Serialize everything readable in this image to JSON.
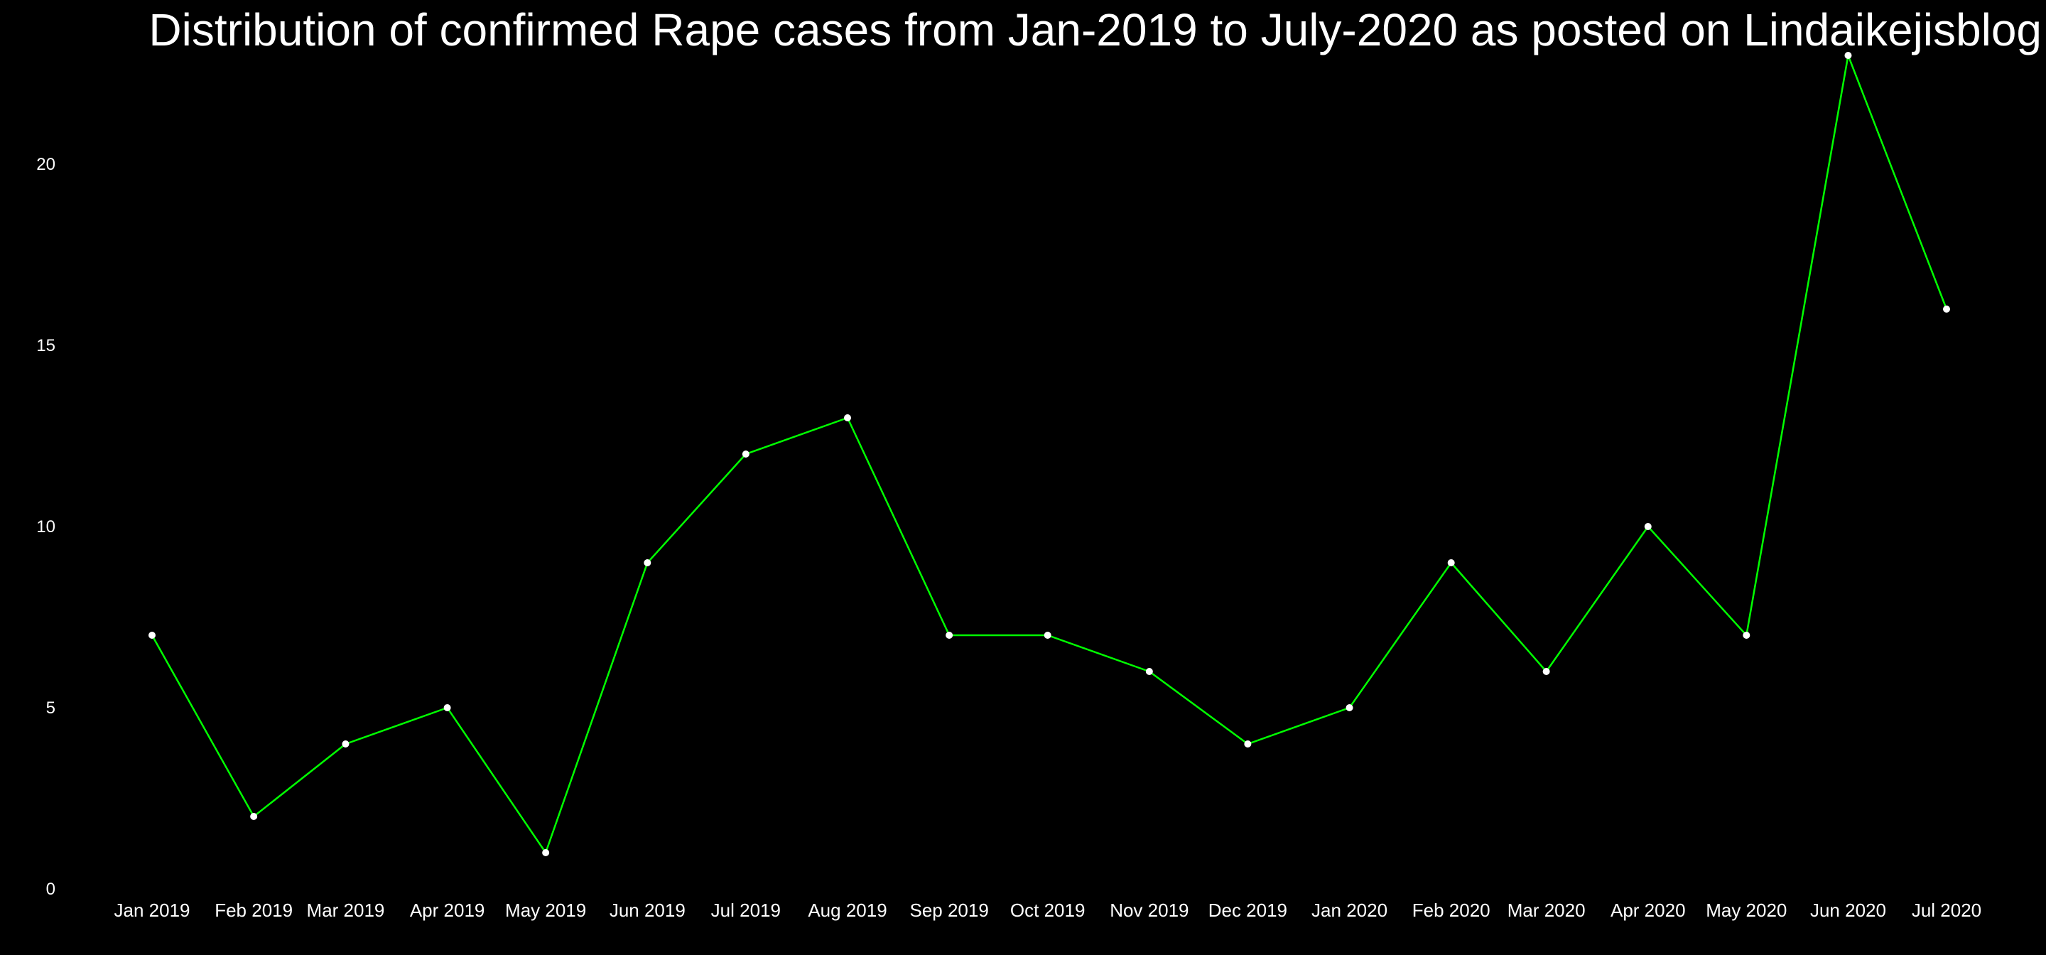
{
  "chart_data": {
    "type": "line",
    "title": "Distribution of confirmed Rape cases from Jan-2019 to July-2020 as posted on Lindaikejisblog",
    "xlabel": "",
    "ylabel": "",
    "categories": [
      "Jan 2019",
      "Feb 2019",
      "Mar 2019",
      "Apr 2019",
      "May 2019",
      "Jun 2019",
      "Jul 2019",
      "Aug 2019",
      "Sep 2019",
      "Oct 2019",
      "Nov 2019",
      "Dec 2019",
      "Jan 2020",
      "Feb 2020",
      "Mar 2020",
      "Apr 2020",
      "May 2020",
      "Jun 2020",
      "Jul 2020"
    ],
    "x_dates": [
      "2019-01-01",
      "2019-02-01",
      "2019-03-01",
      "2019-04-01",
      "2019-05-01",
      "2019-06-01",
      "2019-07-01",
      "2019-08-01",
      "2019-09-01",
      "2019-10-01",
      "2019-11-01",
      "2019-12-01",
      "2020-01-01",
      "2020-02-01",
      "2020-03-01",
      "2020-04-01",
      "2020-05-01",
      "2020-06-01",
      "2020-07-01"
    ],
    "series": [
      {
        "values": [
          7,
          2,
          4,
          5,
          1,
          9,
          12,
          13,
          7,
          7,
          6,
          4,
          5,
          9,
          6,
          10,
          7,
          23,
          16
        ]
      }
    ],
    "ylim": [
      0,
      23
    ],
    "yticks": [
      0,
      5,
      10,
      15,
      20
    ],
    "grid": false,
    "line_color": "#00ff00",
    "point_color": "#ffffff",
    "background_color": "#000000",
    "text_color": "#ffffff"
  }
}
